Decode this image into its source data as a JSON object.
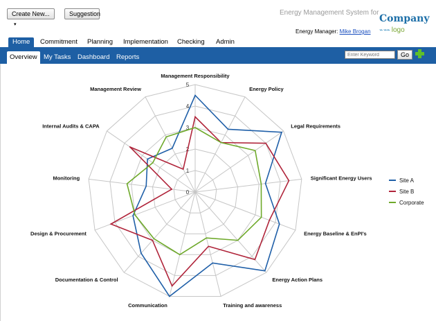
{
  "toolbar": {
    "create_label": "Create New...",
    "suggestion_label": "Suggestion"
  },
  "header": {
    "app_title": "Energy Management System for",
    "manager_label": "Energy Manager:",
    "manager_name": "Mike Brogan",
    "logo_company": "Company",
    "logo_word": "logo",
    "logo_mark": "⌁ ⌁⌁"
  },
  "nav": {
    "tabs": [
      {
        "label": "Home",
        "active": true
      },
      {
        "label": "Commitment",
        "active": false
      },
      {
        "label": "Planning",
        "active": false
      },
      {
        "label": "Implementation",
        "active": false
      },
      {
        "label": "Checking",
        "active": false
      },
      {
        "label": "Admin",
        "active": false
      }
    ],
    "subtabs": [
      {
        "label": "Overview",
        "active": true
      },
      {
        "label": "My Tasks",
        "active": false
      },
      {
        "label": "Dashboard",
        "active": false
      },
      {
        "label": "Reports",
        "active": false
      }
    ]
  },
  "search": {
    "placeholder": "Enter Keyword",
    "go_label": "Go"
  },
  "colors": {
    "nav_blue": "#1e5fa4",
    "site_a": "#1f5fa8",
    "site_b": "#b0243a",
    "corporate": "#6ea92a"
  },
  "chart_data": {
    "type": "radar",
    "categories": [
      "Management Responsibility",
      "Energy Policy",
      "Legal Requirements",
      "Significant Energy Users",
      "Energy Baseline & EnPI's",
      "Energy Action Plans",
      "Training and awareness",
      "Communication",
      "Documentation & Control",
      "Design & Procurement",
      "Monitoring",
      "Internal Audits & CAPA",
      "Management Review"
    ],
    "rlim": [
      0,
      5
    ],
    "ticks": [
      "0",
      "1",
      "2",
      "3",
      "4",
      "5"
    ],
    "series": [
      {
        "name": "Site A",
        "color": "#1f5fa8",
        "values": [
          4.5,
          3.3,
          4.9,
          3.3,
          4.2,
          4.9,
          3.4,
          5.0,
          3.8,
          3.1,
          2.3,
          2.7,
          2.3
        ]
      },
      {
        "name": "Site B",
        "color": "#b0243a",
        "values": [
          3.5,
          2.6,
          4.0,
          4.4,
          3.7,
          4.2,
          2.6,
          4.5,
          3.0,
          4.2,
          1.1,
          3.7,
          1.2
        ]
      },
      {
        "name": "Corporate",
        "color": "#6ea92a",
        "values": [
          3.0,
          2.6,
          3.4,
          3.1,
          3.3,
          3.0,
          2.2,
          3.0,
          2.9,
          3.0,
          3.2,
          2.4,
          2.9
        ]
      }
    ],
    "legend": "right"
  }
}
